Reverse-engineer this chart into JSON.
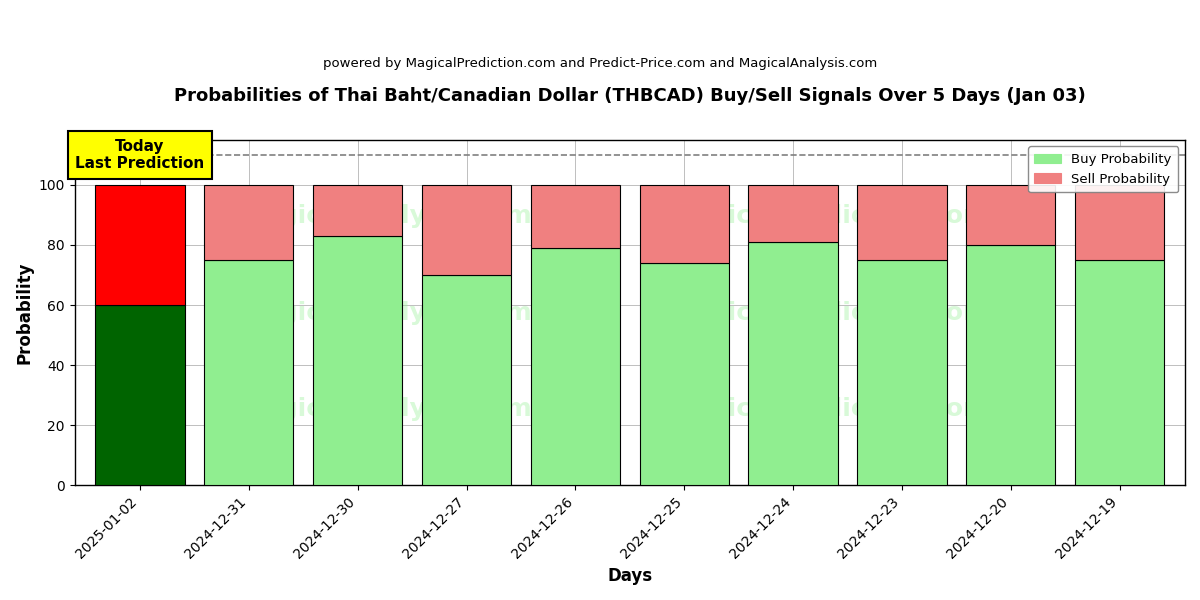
{
  "title": "Probabilities of Thai Baht/Canadian Dollar (THBCAD) Buy/Sell Signals Over 5 Days (Jan 03)",
  "subtitle": "powered by MagicalPrediction.com and Predict-Price.com and MagicalAnalysis.com",
  "xlabel": "Days",
  "ylabel": "Probability",
  "dates": [
    "2025-01-02",
    "2024-12-31",
    "2024-12-30",
    "2024-12-27",
    "2024-12-26",
    "2024-12-25",
    "2024-12-24",
    "2024-12-23",
    "2024-12-20",
    "2024-12-19"
  ],
  "buy_values": [
    60,
    75,
    83,
    70,
    79,
    74,
    81,
    75,
    80,
    75
  ],
  "sell_values": [
    40,
    25,
    17,
    30,
    21,
    26,
    19,
    25,
    20,
    25
  ],
  "buy_colors": [
    "#006400",
    "#90EE90",
    "#90EE90",
    "#90EE90",
    "#90EE90",
    "#90EE90",
    "#90EE90",
    "#90EE90",
    "#90EE90",
    "#90EE90"
  ],
  "sell_colors": [
    "#FF0000",
    "#F08080",
    "#F08080",
    "#F08080",
    "#F08080",
    "#F08080",
    "#F08080",
    "#F08080",
    "#F08080",
    "#F08080"
  ],
  "today_label": "Today\nLast Prediction",
  "today_box_color": "#FFFF00",
  "legend_buy_color": "#90EE90",
  "legend_sell_color": "#F08080",
  "dashed_line_y": 110,
  "ylim": [
    0,
    115
  ],
  "yticks": [
    0,
    20,
    40,
    60,
    80,
    100
  ],
  "bar_edge_color": "#000000",
  "bar_linewidth": 0.8,
  "fig_width": 12,
  "fig_height": 6
}
